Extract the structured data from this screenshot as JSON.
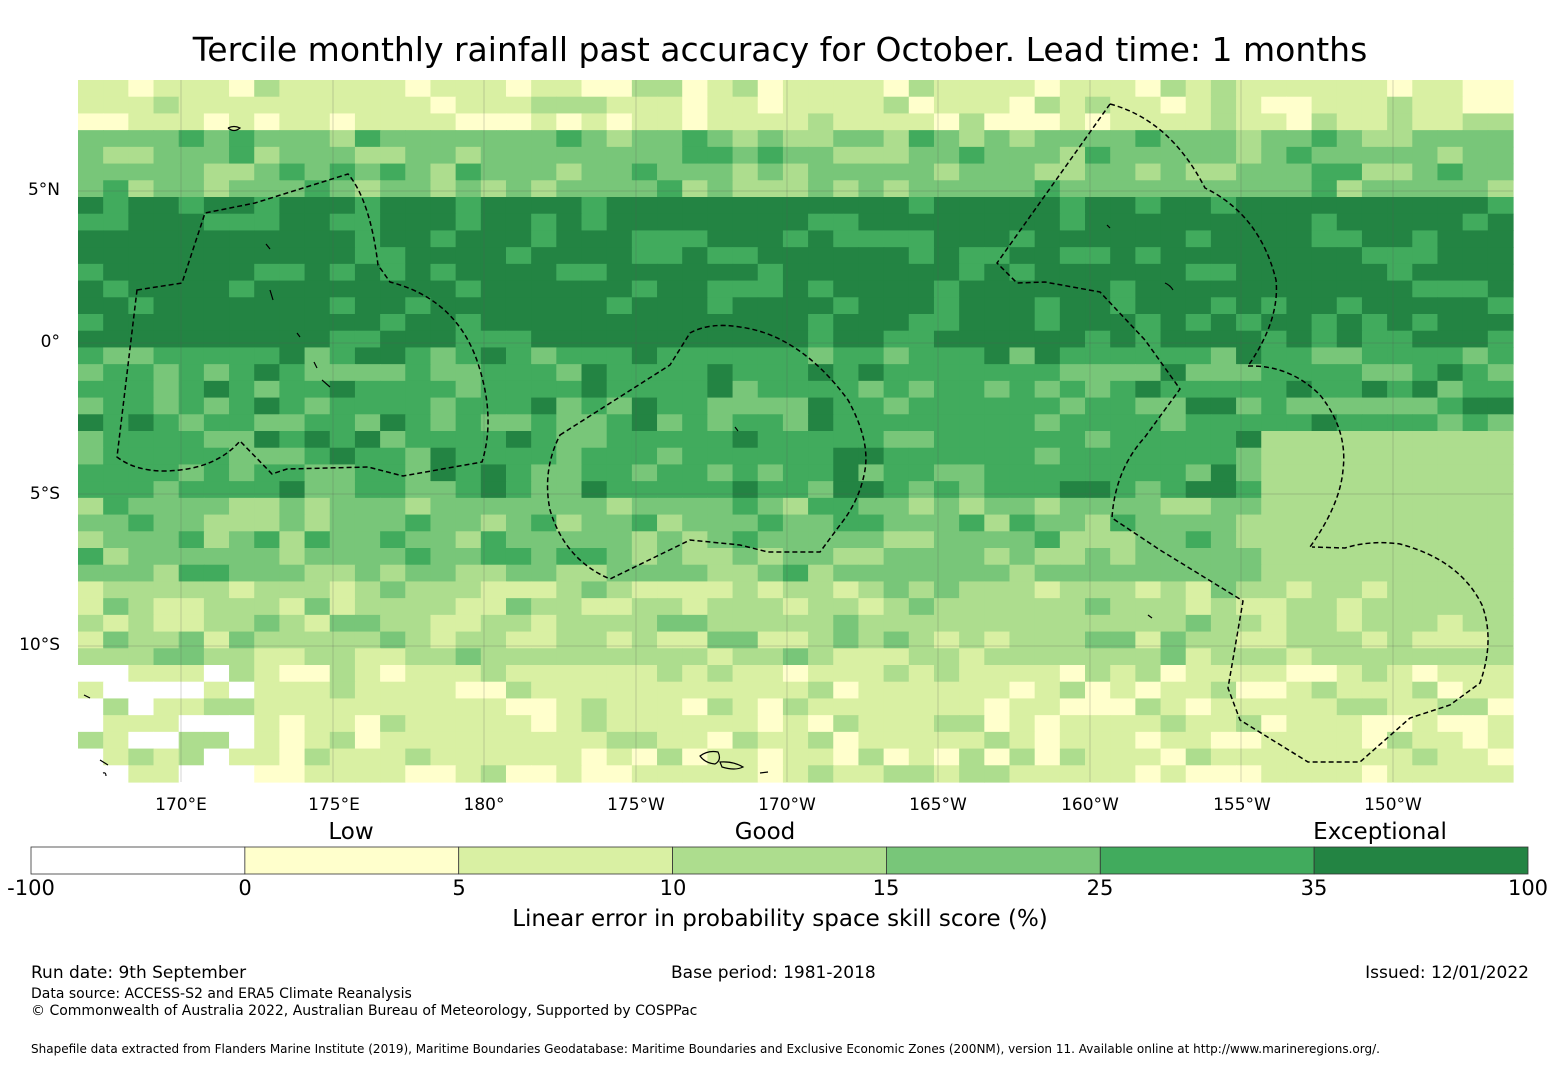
{
  "title": "Tercile monthly rainfall past accuracy for October. Lead time: 1 months",
  "map": {
    "lat_labels": [
      "5°N",
      "0°",
      "5°S",
      "10°S"
    ],
    "lon_labels": [
      "170°E",
      "175°E",
      "180°",
      "175°W",
      "170°W",
      "165°W",
      "160°W",
      "155°W",
      "150°W"
    ],
    "bands": [
      {
        "from": 8.5,
        "to": 7.0,
        "level": 2
      },
      {
        "from": 7.0,
        "to": 5.0,
        "level": 4
      },
      {
        "from": 5.0,
        "to": 0.0,
        "level": 6
      },
      {
        "from": 0.0,
        "to": -5.0,
        "level": 5
      },
      {
        "from": -5.0,
        "to": -8.0,
        "level": 4
      },
      {
        "from": -8.0,
        "to": -10.5,
        "level": 3
      },
      {
        "from": -10.5,
        "to": -14.5,
        "level": 2
      }
    ]
  },
  "colorbar": {
    "categories": [
      "Low",
      "Good",
      "Exceptional"
    ],
    "ticks": [
      "-100",
      "0",
      "5",
      "10",
      "15",
      "25",
      "35",
      "100"
    ],
    "colors": [
      "#ffffff",
      "#ffffcc",
      "#d9f0a3",
      "#addd8e",
      "#78c679",
      "#41ab5d",
      "#238443"
    ],
    "label": "Linear error in probability space skill score (%)"
  },
  "footer": {
    "run_date": "Run date: 9th September",
    "base_period": "Base period: 1981-2018",
    "issued": "Issued: 12/01/2022",
    "data_source": "Data source: ACCESS-S2 and ERA5 Climate Reanalysis",
    "copyright": "© Commonwealth of Australia 2022, Australian Bureau of Meteorology, Supported by COSPPac",
    "shapefile": "Shapefile data extracted from Flanders Marine Institute (2019), Maritime Boundaries Geodatabase: Maritime Boundaries and Exclusive Economic Zones (200NM), version 11. Available online at http://www.marineregions.org/."
  }
}
